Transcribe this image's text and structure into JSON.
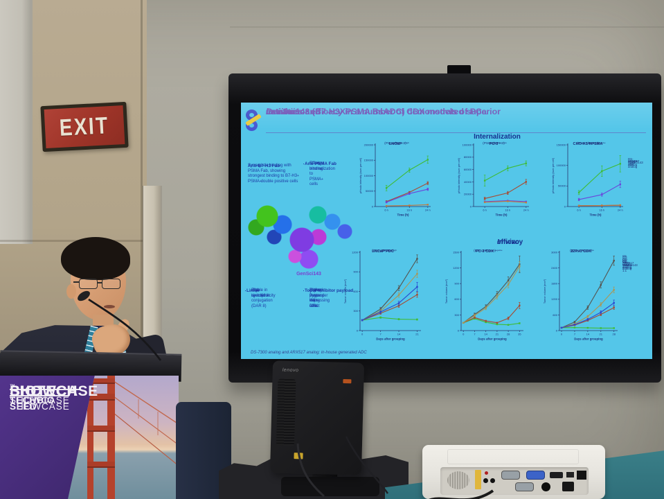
{
  "scene": {
    "exit_sign": "EXIT",
    "monitor_brand": "lenovo",
    "podium": {
      "biotech_line1": "BIOTECH",
      "biotech_line2": "SHOWCASE",
      "trademark": "™",
      "techbio_line1": "TECHBIO",
      "techbio_line2": "SHOWCASE",
      "seed_line1": "SEED",
      "seed_line2": "SHOWCASE"
    },
    "colors": {
      "podium_purple": "#432a74",
      "slide_cyan": "#54c6e9",
      "exit_red": "#9e3428",
      "lanyard_teal": "#2f7f9b"
    }
  },
  "slide": {
    "title": {
      "p1": "GenSci143 (B7-H3XPSMA BsADC) demonstrated superior ",
      "italic1": "in vitro",
      "p2": " activities and ",
      "italic2": "in vivo",
      "p3": " anti-tumor efficacy in a number of CDX models of PCa"
    },
    "sections": {
      "internalization": "Internalization",
      "invivo_italic": "In vivo",
      "invivo_rest": " efficacy"
    },
    "left_column": {
      "anti_b7h3": {
        "heading": "Anti-B7-H3 Fab",
        "body": "Synergistic binding with PSMA Fab, showing strongest binding to B7-H3^{+} PSMA^{+} double positive cells"
      },
      "anti_psma": {
        "heading": "Anti-PSMA Fab",
        "bullets": [
          "Strong binding to PSMA^{+} cells",
          "Efficient internalization"
        ]
      },
      "molecule_label": "GenSci143",
      "linker": {
        "heading": "Linker",
        "bullets": [
          "Site-specific conjugation (DAR 8)",
          "Stable in circulation",
          "High hydrophilicity"
        ]
      },
      "payload": {
        "heading": "TopoI inhibitor payload",
        "bullets": [
          "Higher potency than DXd",
          "Strong bystander killing effect",
          "Active in P-gp expressing cells"
        ]
      }
    },
    "footnote": "DS-7300 analog and ARX517 analog: in-house generated ADC"
  },
  "chart_data": [
    {
      "type": "line",
      "title": "LNCaP",
      "subtitle": "(PSMA^{high}/B7-H3^{high})",
      "xlabel": "Time (h)",
      "ylabel": "pHrodo intensity (sum per cell)",
      "x": [
        6,
        16,
        24
      ],
      "xticklabels": [
        "6 h",
        "16 h",
        "24 h"
      ],
      "ylim": [
        0,
        200000
      ],
      "yticks": [
        0,
        50000,
        100000,
        150000,
        200000
      ],
      "legend": false,
      "series": [
        {
          "name": "GenSci143",
          "color": "#3fbc36",
          "values": [
            60000,
            118000,
            152000
          ],
          "err": [
            9000,
            7000,
            12000
          ]
        },
        {
          "name": "DS-7300 analog",
          "color": "#a8492f",
          "values": [
            16000,
            46000,
            76000
          ],
          "err": [
            3000,
            3000,
            5000
          ]
        },
        {
          "name": "ARX517 analog",
          "color": "#6a46db",
          "values": [
            14000,
            42000,
            56000
          ],
          "err": [
            2500,
            3000,
            4000
          ]
        },
        {
          "name": "Isotype ADC",
          "color": "#bf7b41",
          "values": [
            2000,
            3500,
            6000
          ]
        }
      ]
    },
    {
      "type": "line",
      "title": "PC-3",
      "subtitle": "(PSMA^{negative}/B7-H3^{low})",
      "xlabel": "Time (h)",
      "ylabel": "pHrodo intensity (sum per cell)",
      "x": [
        6,
        16,
        24
      ],
      "xticklabels": [
        "6 h",
        "16 h",
        "24 h"
      ],
      "ylim": [
        0,
        100000
      ],
      "yticks": [
        0,
        20000,
        40000,
        60000,
        80000,
        100000
      ],
      "legend": false,
      "series": [
        {
          "name": "GenSci143",
          "color": "#3fbc36",
          "values": [
            42000,
            62000,
            70000
          ],
          "err": [
            9000,
            4000,
            4000
          ]
        },
        {
          "name": "DS-7300 analog",
          "color": "#a8492f",
          "values": [
            13000,
            22000,
            40000
          ],
          "err": [
            2000,
            2500,
            4000
          ]
        },
        {
          "name": "ARX517 analog",
          "color": "#6a46db",
          "values": [
            8000,
            9500,
            8000
          ]
        },
        {
          "name": "Isotype ADC",
          "color": "#bf7b41",
          "values": [
            7000,
            8500,
            6500
          ]
        }
      ]
    },
    {
      "type": "line",
      "title": "CHO-K1-hPSMA",
      "subtitle": "(PSMA^{high}/B7-H3^{negative})",
      "xlabel": "Time (h)",
      "ylabel": "pHrodo intensity (sum per cell)",
      "x": [
        6,
        16,
        24
      ],
      "xticklabels": [
        "6 h",
        "16 h",
        "24 h"
      ],
      "ylim": [
        0,
        150000
      ],
      "yticks": [
        0,
        50000,
        100000,
        150000
      ],
      "legend": true,
      "series": [
        {
          "name": "GenSci143",
          "color": "#3fbc36",
          "values": [
            34000,
            86000,
            104000
          ],
          "err": [
            5000,
            13000,
            20000
          ]
        },
        {
          "name": "DS-7300 analog",
          "color": "#a8492f",
          "values": [
            2000,
            2500,
            3000
          ]
        },
        {
          "name": "ARX517 analog",
          "color": "#6a46db",
          "values": [
            17000,
            29000,
            54000
          ],
          "err": [
            3000,
            4000,
            8000
          ]
        },
        {
          "name": "Isotype ADC",
          "color": "#bf7b41",
          "values": [
            2000,
            2500,
            3500
          ]
        }
      ]
    },
    {
      "type": "line",
      "title": "LNCaP PDC",
      "subtitle": "(B7-H3^{high} PSMA^{high})",
      "xlabel": "Days after grouping",
      "ylabel": "Tumor volume (mm³)",
      "x": [
        0,
        7,
        14,
        21
      ],
      "ylim": [
        0,
        1200
      ],
      "yticks": [
        0,
        300,
        600,
        900,
        1200
      ],
      "legend": false,
      "series": [
        {
          "name": "Vehicle",
          "color": "#55534e",
          "values": [
            160,
            330,
            650,
            1100
          ],
          "err": [
            10,
            25,
            40,
            60
          ]
        },
        {
          "name": "GenSci143",
          "color": "#3fbc36",
          "values": [
            160,
            200,
            175,
            170
          ],
          "err": [
            8,
            12,
            10,
            10
          ]
        },
        {
          "name": "DS-7300 analog",
          "color": "#a8492f",
          "values": [
            160,
            265,
            380,
            550
          ],
          "err": [
            10,
            15,
            25,
            40
          ]
        },
        {
          "name": "ARX517 analog",
          "color": "#ab9655",
          "values": [
            160,
            300,
            545,
            870
          ],
          "err": [
            10,
            20,
            35,
            55
          ]
        },
        {
          "name": "DS-7300 analog, 1:1",
          "color": "#2b46cf",
          "values": [
            160,
            285,
            420,
            670
          ],
          "err": [
            10,
            20,
            30,
            70
          ]
        }
      ]
    },
    {
      "type": "line",
      "title": "PC-3 CDX",
      "subtitle": "(B7-H3^{low} PSMA^{negative})",
      "xlabel": "Days after grouping",
      "ylabel": "Tumor volume (mm³)",
      "x": [
        0,
        7,
        14,
        21,
        28,
        35
      ],
      "ylim": [
        0,
        1500
      ],
      "yticks": [
        0,
        300,
        600,
        900,
        1200,
        1500
      ],
      "legend": false,
      "series": [
        {
          "name": "Vehicle",
          "color": "#55534e",
          "values": [
            150,
            310,
            460,
            700,
            960,
            1270
          ],
          "err": [
            10,
            25,
            35,
            50,
            70,
            160
          ]
        },
        {
          "name": "GenSci143",
          "color": "#3fbc36",
          "values": [
            150,
            230,
            160,
            120,
            110,
            140
          ],
          "err": [
            8,
            14,
            10,
            8,
            8,
            10
          ]
        },
        {
          "name": "DS-7300 analog",
          "color": "#a8492f",
          "values": [
            150,
            250,
            185,
            150,
            235,
            480
          ],
          "err": [
            8,
            15,
            12,
            10,
            25,
            60
          ]
        },
        {
          "name": "ARX517 analog",
          "color": "#ab9655",
          "values": [
            150,
            290,
            430,
            650,
            880,
            1230
          ],
          "err": [
            10,
            20,
            30,
            45,
            60,
            90
          ]
        }
      ]
    },
    {
      "type": "line",
      "title": "22Rv1 CDX",
      "subtitle": "(B7-H3^{low} PSMA^{low})",
      "xlabel": "Days after grouping",
      "ylabel": "Tumor volume (mm³)",
      "x": [
        0,
        7,
        14,
        21,
        28
      ],
      "ylim": [
        0,
        3000
      ],
      "yticks": [
        0,
        600,
        1200,
        1800,
        2400,
        3000
      ],
      "legend": true,
      "series": [
        {
          "name": "G1, Vehicle",
          "color": "#55534e",
          "values": [
            110,
            330,
            880,
            1750,
            2680
          ],
          "err": [
            10,
            30,
            70,
            120,
            180
          ]
        },
        {
          "name": "G2, GenSci143",
          "color": "#3fbc36",
          "values": [
            110,
            115,
            105,
            95,
            95
          ],
          "err": [
            6,
            8,
            8,
            8,
            8
          ]
        },
        {
          "name": "G3, DS-7300 analog",
          "color": "#a8492f",
          "values": [
            110,
            210,
            390,
            620,
            880
          ],
          "err": [
            8,
            15,
            30,
            50,
            70
          ]
        },
        {
          "name": "G4, ARX517 analog",
          "color": "#ab9655",
          "values": [
            110,
            260,
            540,
            1000,
            1560
          ],
          "err": [
            10,
            20,
            40,
            70,
            110
          ]
        },
        {
          "name": "G5, DS-7300 analog, 1:1",
          "color": "#2b46cf",
          "values": [
            110,
            230,
            430,
            700,
            1060
          ],
          "err": [
            10,
            20,
            35,
            60,
            110
          ]
        }
      ]
    }
  ]
}
